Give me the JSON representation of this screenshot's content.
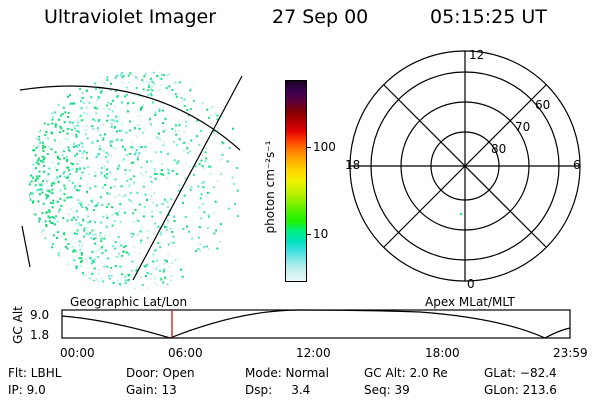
{
  "header": {
    "title": "Ultraviolet Imager",
    "date": "27 Sep 00",
    "time": "05:15:25 UT"
  },
  "colorbar": {
    "unit_label": "photon cm⁻²s⁻¹",
    "ticks": [
      "100",
      "10"
    ],
    "colors": [
      "#1a0020",
      "#3a0050",
      "#5a0040",
      "#800000",
      "#b00000",
      "#e00000",
      "#ff4000",
      "#ff8000",
      "#ffb000",
      "#ffd800",
      "#f0f000",
      "#c8f000",
      "#90f000",
      "#50f000",
      "#20f000",
      "#00f080",
      "#00e0c0",
      "#40e0e0",
      "#90e8e8",
      "#c8f0f0",
      "#e8f8f8"
    ]
  },
  "polar": {
    "mlt_labels": [
      "12",
      "18",
      "6",
      "0"
    ],
    "lat_labels": [
      "60",
      "70",
      "80"
    ]
  },
  "timeline": {
    "y_label": "GC Alt",
    "y_ticks": [
      "9.0",
      "1.8"
    ],
    "left_label": "Geographic Lat/Lon",
    "right_label": "Apex MLat/MLT",
    "time_ticks": [
      "00:00",
      "06:00",
      "12:00",
      "18:00",
      "23:59"
    ]
  },
  "info": {
    "flt": "Flt: LBHL",
    "ip": "IP:  9.0",
    "door": "Door: Open",
    "gain": "Gain: 13",
    "mode": "Mode: Normal",
    "dsp": "Dsp:     3.4",
    "gcalt": "GC Alt: 2.0 Re",
    "seq": "Seq: 39",
    "glat": "GLat: −82.4",
    "glon": "GLon: 213.6"
  },
  "colors": {
    "accent_green": "#20e080",
    "marker_red": "#cc0000"
  }
}
